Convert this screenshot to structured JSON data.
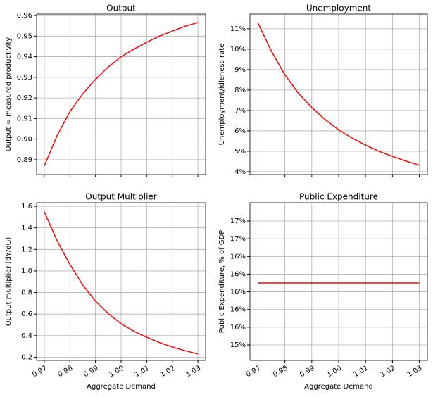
{
  "chart_data": [
    {
      "type": "line",
      "title": "Output",
      "ylabel": "Output = measured productivity",
      "x": [
        0.97,
        0.975,
        0.98,
        0.985,
        0.99,
        0.995,
        1.0,
        1.005,
        1.01,
        1.015,
        1.02,
        1.025,
        1.03
      ],
      "values": [
        0.887,
        0.9017,
        0.9133,
        0.922,
        0.929,
        0.935,
        0.94,
        0.9437,
        0.947,
        0.95,
        0.9524,
        0.9548,
        0.9566
      ],
      "color": "#ff0000",
      "grid": true,
      "xlim": [
        0.967,
        1.033
      ],
      "xticks": [
        0.97,
        0.98,
        0.99,
        1.0,
        1.01,
        1.02,
        1.03
      ],
      "xticklabels": false,
      "ylim": [
        0.8828,
        0.9607
      ],
      "yticks": [
        0.89,
        {
          "value": 0.9,
          "label": "0.90"
        },
        0.91,
        0.92,
        0.93,
        0.94,
        0.95,
        0.96
      ]
    },
    {
      "type": "line",
      "title": "Unemployment",
      "ylabel": "Unemployment/idleness rate",
      "x": [
        0.97,
        0.975,
        0.98,
        0.985,
        0.99,
        0.995,
        1.0,
        1.005,
        1.01,
        1.015,
        1.02,
        1.025,
        1.03
      ],
      "values": [
        11.28,
        9.9,
        8.75,
        7.85,
        7.15,
        6.55,
        6.05,
        5.65,
        5.3,
        5.0,
        4.75,
        4.52,
        4.32
      ],
      "color": "#ff0000",
      "grid": true,
      "xlim": [
        0.967,
        1.033
      ],
      "xticks": [
        0.97,
        0.98,
        0.99,
        1.0,
        1.01,
        1.02,
        1.03
      ],
      "xticklabels": false,
      "ylim": [
        3.86,
        11.72
      ],
      "yticks": [
        {
          "value": 4,
          "label": "4%"
        },
        {
          "value": 5,
          "label": "5%"
        },
        {
          "value": 6,
          "label": "6%"
        },
        {
          "value": 7,
          "label": "7%"
        },
        {
          "value": 8,
          "label": "8%"
        },
        {
          "value": 9,
          "label": "9%"
        },
        {
          "value": 10,
          "label": "10%"
        },
        {
          "value": 11,
          "label": "11%"
        }
      ]
    },
    {
      "type": "line",
      "title": "Output Multiplier",
      "ylabel": "Output multiplier (dY/dG)",
      "xlabel": "Aggregate Demand",
      "x": [
        0.97,
        0.975,
        0.98,
        0.985,
        0.99,
        0.995,
        1.0,
        1.005,
        1.01,
        1.015,
        1.02,
        1.025,
        1.03
      ],
      "values": [
        1.55,
        1.28,
        1.06,
        0.87,
        0.72,
        0.605,
        0.51,
        0.44,
        0.385,
        0.335,
        0.295,
        0.26,
        0.23
      ],
      "color": "#ff0000",
      "grid": true,
      "xlim": [
        0.967,
        1.033
      ],
      "xticks": [
        0.97,
        0.98,
        0.99,
        {
          "value": 1.0,
          "label": "1.00"
        },
        1.01,
        1.02,
        1.03
      ],
      "xticklabels": true,
      "ylim": [
        0.17,
        1.633
      ],
      "yticks": [
        0.2,
        0.4,
        0.6,
        0.8,
        {
          "value": 1.0,
          "label": "1.0"
        },
        1.2,
        1.4,
        1.6
      ]
    },
    {
      "type": "line",
      "title": "Public Expenditure",
      "ylabel": "Public Expenditure, % of GDP",
      "xlabel": "Aggregate Demand",
      "x": [
        0.97,
        0.975,
        0.98,
        0.985,
        0.99,
        0.995,
        1.0,
        1.005,
        1.01,
        1.015,
        1.02,
        1.025,
        1.03
      ],
      "values": [
        16.1,
        16.1,
        16.1,
        16.1,
        16.1,
        16.1,
        16.1,
        16.1,
        16.1,
        16.1,
        16.1,
        16.1,
        16.1
      ],
      "color": "#ff0000",
      "grid": true,
      "xlim": [
        0.967,
        1.033
      ],
      "xticks": [
        0.97,
        0.98,
        0.99,
        {
          "value": 1.0,
          "label": "1.00"
        },
        1.01,
        1.02,
        1.03
      ],
      "xticklabels": true,
      "ylim": [
        15.225,
        17.007
      ],
      "yticks": [
        {
          "value": 15.4,
          "label": "15%"
        },
        {
          "value": 15.6,
          "label": "16%"
        },
        {
          "value": 15.8,
          "label": "16%"
        },
        {
          "value": 16.0,
          "label": "16%"
        },
        {
          "value": 16.2,
          "label": "16%"
        },
        {
          "value": 16.4,
          "label": "16%"
        },
        {
          "value": 16.6,
          "label": "17%"
        },
        {
          "value": 16.8,
          "label": "17%"
        }
      ]
    }
  ]
}
